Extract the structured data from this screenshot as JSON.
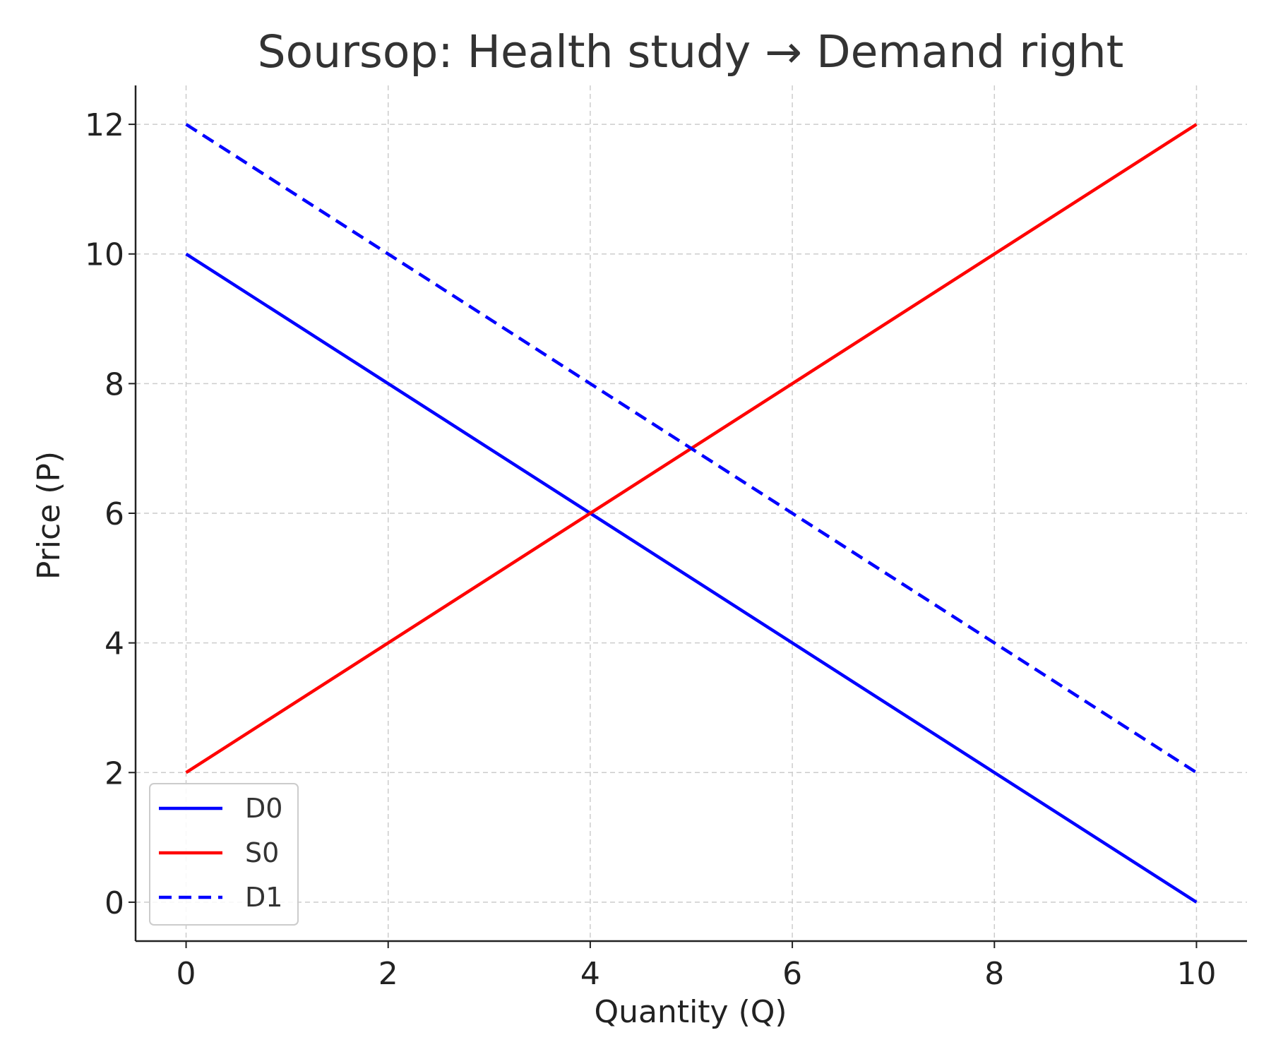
{
  "chart_data": {
    "type": "line",
    "title": "Soursop: Health study → Demand right",
    "xlabel": "Quantity (Q)",
    "ylabel": "Price (P)",
    "xlim": [
      -0.5,
      10.5
    ],
    "ylim": [
      -0.6,
      12.6
    ],
    "xticks": [
      0,
      2,
      4,
      6,
      8,
      10
    ],
    "yticks": [
      0,
      2,
      4,
      6,
      8,
      10,
      12
    ],
    "grid": true,
    "legend_position": "lower-left",
    "series": [
      {
        "name": "D0",
        "color": "#0000ff",
        "style": "solid",
        "x": [
          0,
          10
        ],
        "y": [
          10,
          0
        ]
      },
      {
        "name": "S0",
        "color": "#ff0000",
        "style": "solid",
        "x": [
          0,
          10
        ],
        "y": [
          2,
          12
        ]
      },
      {
        "name": "D1",
        "color": "#0000ff",
        "style": "dashed",
        "x": [
          0,
          10
        ],
        "y": [
          12,
          2
        ]
      }
    ]
  }
}
